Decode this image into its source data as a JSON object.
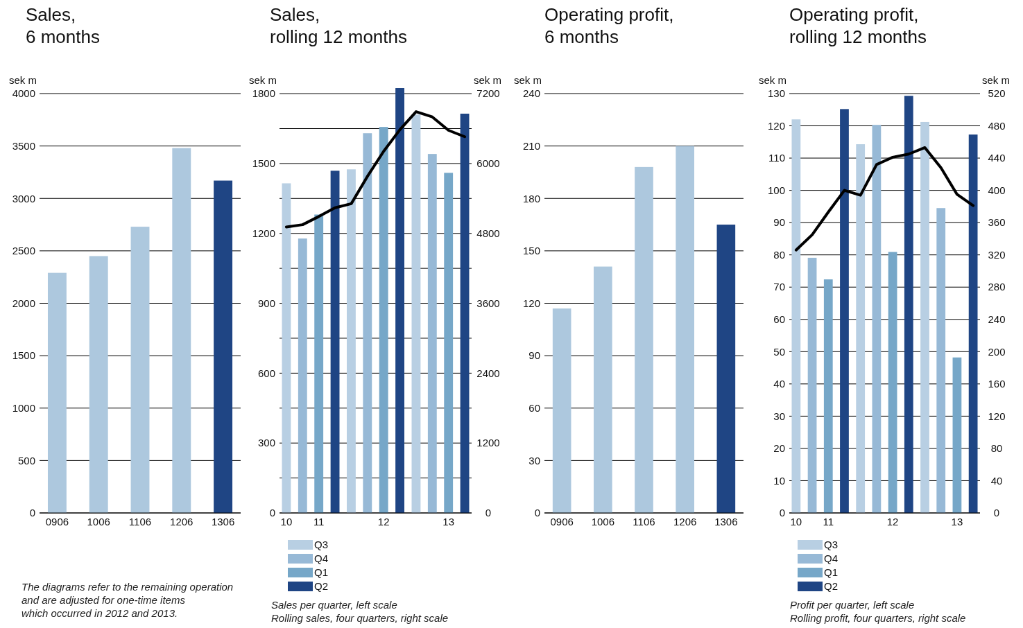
{
  "chart_data": [
    {
      "type": "bar",
      "title": "Sales,\n6 months",
      "ylabel": "sek m",
      "categories": [
        "0906",
        "1006",
        "1106",
        "1206",
        "1306"
      ],
      "ylim": [
        0,
        4000
      ],
      "yticks": [
        0,
        500,
        1000,
        1500,
        2000,
        2500,
        3000,
        3500,
        4000
      ],
      "grid": "y",
      "series": [
        {
          "colors": [
            "#adc8de",
            "#adc8de",
            "#adc8de",
            "#adc8de",
            "#1f4584"
          ],
          "values": [
            2290,
            2450,
            2730,
            3480,
            3170
          ]
        }
      ],
      "annotations": [
        "The diagrams refer to the remaining operation\nand are adjusted for one-time items\nwhich occurred in 2012 and 2013."
      ]
    },
    {
      "type": "bar",
      "title": "Sales,\nrolling 12 months",
      "ylabel": "sek m",
      "y2label": "sek m",
      "categories": [
        "10",
        null,
        "11",
        null,
        null,
        null,
        "12",
        null,
        null,
        null,
        "13",
        null
      ],
      "stacked": true,
      "grid": "y",
      "legend": "bottom",
      "ylim": [
        0,
        1830
      ],
      "yticks": [
        0,
        {
          "value": 150,
          "label": null
        },
        300,
        {
          "value": 450,
          "label": null
        },
        600,
        {
          "value": 750,
          "label": null
        },
        900,
        {
          "value": 1050,
          "label": null
        },
        1200,
        {
          "value": 1350,
          "label": null
        },
        1500,
        {
          "value": 1650,
          "label": null
        },
        1800
      ],
      "y2lim": [
        0,
        7320
      ],
      "y2ticks": [
        0,
        1200,
        2400,
        3600,
        4800,
        6000,
        7200
      ],
      "series": [
        {
          "name": "Q3",
          "color": "#b8cfe3",
          "values": [
            1415,
            null,
            null,
            null,
            1475,
            null,
            null,
            null,
            1710,
            null,
            null,
            null
          ]
        },
        {
          "name": "Q4",
          "color": "#97b9d6",
          "values": [
            null,
            1178,
            null,
            null,
            null,
            1630,
            null,
            null,
            null,
            1541,
            null,
            null
          ]
        },
        {
          "name": "Q1",
          "color": "#76a7c8",
          "values": [
            null,
            null,
            1281,
            null,
            null,
            null,
            1657,
            null,
            null,
            null,
            1460,
            null
          ]
        },
        {
          "name": "Q2",
          "color": "#1f4584",
          "values": [
            null,
            null,
            null,
            1469,
            null,
            null,
            null,
            1824,
            null,
            null,
            null,
            1714
          ]
        },
        {
          "type": "line",
          "axis": "y2",
          "color": "#000000",
          "values": [
            4910,
            4950,
            5090,
            5240,
            5310,
            5780,
            6210,
            6580,
            6890,
            6800,
            6570,
            6460
          ]
        }
      ],
      "annotations": [
        "Sales per quarter, left scale",
        "Rolling sales, four quarters, right scale"
      ]
    },
    {
      "type": "bar",
      "title": "Operating profit,\n6 months",
      "ylabel": "sek m",
      "categories": [
        "0906",
        "1006",
        "1106",
        "1206",
        "1306"
      ],
      "ylim": [
        0,
        240
      ],
      "yticks": [
        0,
        30,
        60,
        90,
        120,
        150,
        180,
        210,
        240
      ],
      "grid": "y",
      "series": [
        {
          "colors": [
            "#adc8de",
            "#adc8de",
            "#adc8de",
            "#adc8de",
            "#1f4584"
          ],
          "values": [
            117,
            141,
            198,
            210,
            165
          ]
        }
      ]
    },
    {
      "type": "bar",
      "title": "Operating profit,\nrolling 12 months",
      "ylabel": "sek m",
      "y2label": "sek m",
      "categories": [
        "10",
        null,
        "11",
        null,
        null,
        null,
        "12",
        null,
        null,
        null,
        "13",
        null
      ],
      "stacked": true,
      "grid": "y",
      "legend": "bottom",
      "ylim": [
        0,
        130
      ],
      "yticks": [
        0,
        10,
        20,
        30,
        40,
        50,
        60,
        70,
        80,
        90,
        100,
        110,
        120,
        130
      ],
      "y2lim": [
        0,
        520
      ],
      "y2ticks": [
        0,
        40,
        80,
        120,
        160,
        200,
        240,
        280,
        320,
        360,
        400,
        440,
        480,
        520
      ],
      "series": [
        {
          "name": "Q3",
          "color": "#b8cfe3",
          "values": [
            122,
            null,
            null,
            null,
            114.3,
            null,
            null,
            null,
            121.2,
            null,
            null,
            null
          ]
        },
        {
          "name": "Q4",
          "color": "#97b9d6",
          "values": [
            null,
            79.1,
            null,
            null,
            null,
            120.3,
            null,
            null,
            null,
            94.5,
            null,
            null
          ]
        },
        {
          "name": "Q1",
          "color": "#76a7c8",
          "values": [
            null,
            null,
            72.4,
            null,
            null,
            null,
            80.9,
            null,
            null,
            null,
            48.2,
            null
          ]
        },
        {
          "name": "Q2",
          "color": "#1f4584",
          "values": [
            null,
            null,
            null,
            125.2,
            null,
            null,
            null,
            129.3,
            null,
            null,
            null,
            117.3
          ]
        },
        {
          "type": "line",
          "axis": "y2",
          "color": "#000000",
          "values": [
            326,
            345,
            373,
            400,
            394,
            432,
            441,
            445,
            453,
            428,
            395,
            381
          ]
        }
      ],
      "annotations": [
        "Profit per quarter, left scale",
        "Rolling profit, four quarters, right scale"
      ]
    }
  ]
}
